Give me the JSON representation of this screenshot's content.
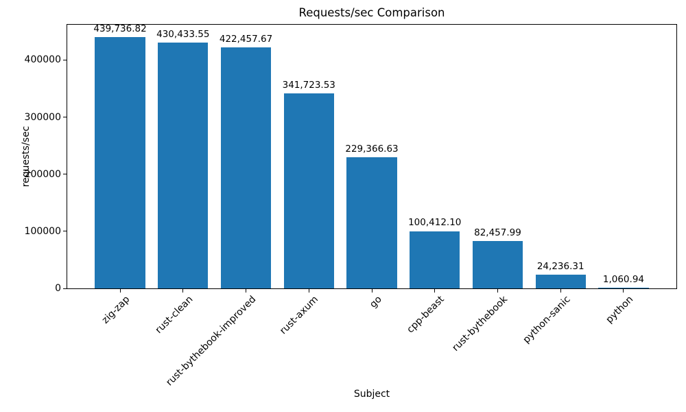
{
  "chart_data": {
    "type": "bar",
    "title": "Requests/sec Comparison",
    "xlabel": "Subject",
    "ylabel": "requests/sec",
    "categories": [
      "zig-zap",
      "rust-clean",
      "rust-bythebook-improved",
      "rust-axum",
      "go",
      "cpp-beast",
      "rust-bythebook",
      "python-sanic",
      "python"
    ],
    "values": [
      439736.82,
      430433.55,
      422457.67,
      341723.53,
      229366.63,
      100412.1,
      82457.99,
      24236.31,
      1060.94
    ],
    "value_labels": [
      "439,736.82",
      "430,433.55",
      "422,457.67",
      "341,723.53",
      "229,366.63",
      "100,412.10",
      "82,457.99",
      "24,236.31",
      "1,060.94"
    ],
    "yticks": [
      0,
      100000,
      200000,
      300000,
      400000
    ],
    "ylim": [
      0,
      461724
    ],
    "bar_color": "#1f77b4",
    "grid": false,
    "legend": null
  }
}
